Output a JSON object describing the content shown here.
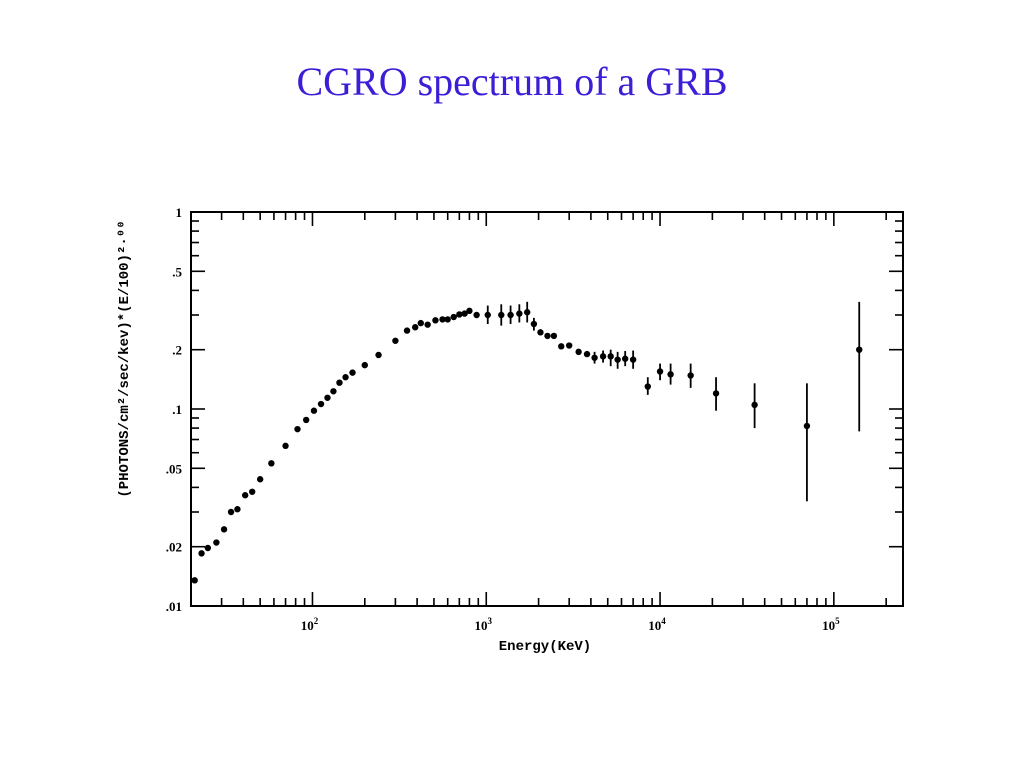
{
  "slide": {
    "title": "CGRO spectrum of a GRB"
  },
  "chart_data": {
    "type": "scatter",
    "title": "",
    "xlabel": "Energy(KeV)",
    "ylabel": "(PHOTONS/cm²/sec/kev)*(E/100)²·⁰⁰",
    "xscale": "log",
    "yscale": "log",
    "xlim": [
      20,
      250000
    ],
    "ylim": [
      0.01,
      1
    ],
    "x_ticks": [
      {
        "value": 100,
        "mantissa": "10",
        "exp": "2"
      },
      {
        "value": 1000,
        "mantissa": "10",
        "exp": "3"
      },
      {
        "value": 10000,
        "mantissa": "10",
        "exp": "4"
      },
      {
        "value": 100000,
        "mantissa": "10",
        "exp": "5"
      }
    ],
    "y_ticks": [
      {
        "value": 0.01,
        "label": ".01"
      },
      {
        "value": 0.02,
        "label": ".02"
      },
      {
        "value": 0.05,
        "label": ".05"
      },
      {
        "value": 0.1,
        "label": ".1"
      },
      {
        "value": 0.2,
        "label": ".2"
      },
      {
        "value": 0.5,
        "label": ".5"
      },
      {
        "value": 1,
        "label": "1"
      }
    ],
    "grid": false,
    "series": [
      {
        "marker_color": "#000000",
        "points": [
          {
            "x": 21,
            "y": 0.0135
          },
          {
            "x": 23,
            "y": 0.0185
          },
          {
            "x": 25,
            "y": 0.0197
          },
          {
            "x": 28,
            "y": 0.021
          },
          {
            "x": 31,
            "y": 0.0245
          },
          {
            "x": 34,
            "y": 0.03
          },
          {
            "x": 37,
            "y": 0.031
          },
          {
            "x": 41,
            "y": 0.0365
          },
          {
            "x": 45,
            "y": 0.038
          },
          {
            "x": 50,
            "y": 0.044
          },
          {
            "x": 58,
            "y": 0.053
          },
          {
            "x": 70,
            "y": 0.065
          },
          {
            "x": 82,
            "y": 0.079
          },
          {
            "x": 92,
            "y": 0.088
          },
          {
            "x": 102,
            "y": 0.098
          },
          {
            "x": 112,
            "y": 0.106
          },
          {
            "x": 122,
            "y": 0.114
          },
          {
            "x": 132,
            "y": 0.123
          },
          {
            "x": 143,
            "y": 0.136
          },
          {
            "x": 155,
            "y": 0.145
          },
          {
            "x": 170,
            "y": 0.153
          },
          {
            "x": 200,
            "y": 0.167
          },
          {
            "x": 240,
            "y": 0.188
          },
          {
            "x": 300,
            "y": 0.222
          },
          {
            "x": 350,
            "y": 0.25
          },
          {
            "x": 390,
            "y": 0.26
          },
          {
            "x": 420,
            "y": 0.273
          },
          {
            "x": 460,
            "y": 0.268
          },
          {
            "x": 510,
            "y": 0.282
          },
          {
            "x": 560,
            "y": 0.285
          },
          {
            "x": 600,
            "y": 0.285
          },
          {
            "x": 650,
            "y": 0.293
          },
          {
            "x": 700,
            "y": 0.302
          },
          {
            "x": 750,
            "y": 0.305
          },
          {
            "x": 800,
            "y": 0.315
          },
          {
            "x": 880,
            "y": 0.3
          },
          {
            "x": 1020,
            "y": 0.3,
            "err_lo": 0.27,
            "err_hi": 0.335
          },
          {
            "x": 1220,
            "y": 0.3,
            "err_lo": 0.265,
            "err_hi": 0.34
          },
          {
            "x": 1380,
            "y": 0.3,
            "err_lo": 0.27,
            "err_hi": 0.335
          },
          {
            "x": 1550,
            "y": 0.305,
            "err_lo": 0.275,
            "err_hi": 0.34
          },
          {
            "x": 1720,
            "y": 0.31,
            "err_lo": 0.275,
            "err_hi": 0.35
          },
          {
            "x": 1880,
            "y": 0.27,
            "err_lo": 0.25,
            "err_hi": 0.29
          },
          {
            "x": 2050,
            "y": 0.245
          },
          {
            "x": 2250,
            "y": 0.235
          },
          {
            "x": 2450,
            "y": 0.235
          },
          {
            "x": 2700,
            "y": 0.208
          },
          {
            "x": 3000,
            "y": 0.21
          },
          {
            "x": 3400,
            "y": 0.195
          },
          {
            "x": 3800,
            "y": 0.19
          },
          {
            "x": 4200,
            "y": 0.182,
            "err_lo": 0.17,
            "err_hi": 0.195
          },
          {
            "x": 4700,
            "y": 0.185,
            "err_lo": 0.172,
            "err_hi": 0.198
          },
          {
            "x": 5200,
            "y": 0.185,
            "err_lo": 0.165,
            "err_hi": 0.2
          },
          {
            "x": 5700,
            "y": 0.178,
            "err_lo": 0.16,
            "err_hi": 0.195
          },
          {
            "x": 6300,
            "y": 0.18,
            "err_lo": 0.165,
            "err_hi": 0.197
          },
          {
            "x": 7000,
            "y": 0.178,
            "err_lo": 0.16,
            "err_hi": 0.198
          },
          {
            "x": 8500,
            "y": 0.13,
            "err_lo": 0.118,
            "err_hi": 0.145
          },
          {
            "x": 10000,
            "y": 0.155,
            "err_lo": 0.14,
            "err_hi": 0.17
          },
          {
            "x": 11500,
            "y": 0.15,
            "err_lo": 0.133,
            "err_hi": 0.17
          },
          {
            "x": 15000,
            "y": 0.148,
            "err_lo": 0.128,
            "err_hi": 0.17
          },
          {
            "x": 21000,
            "y": 0.12,
            "err_lo": 0.098,
            "err_hi": 0.145
          },
          {
            "x": 35000,
            "y": 0.105,
            "err_lo": 0.08,
            "err_hi": 0.135
          },
          {
            "x": 70000,
            "y": 0.082,
            "err_lo": 0.034,
            "err_hi": 0.135
          },
          {
            "x": 140000,
            "y": 0.2,
            "err_lo": 0.077,
            "err_hi": 0.35
          }
        ]
      }
    ]
  }
}
